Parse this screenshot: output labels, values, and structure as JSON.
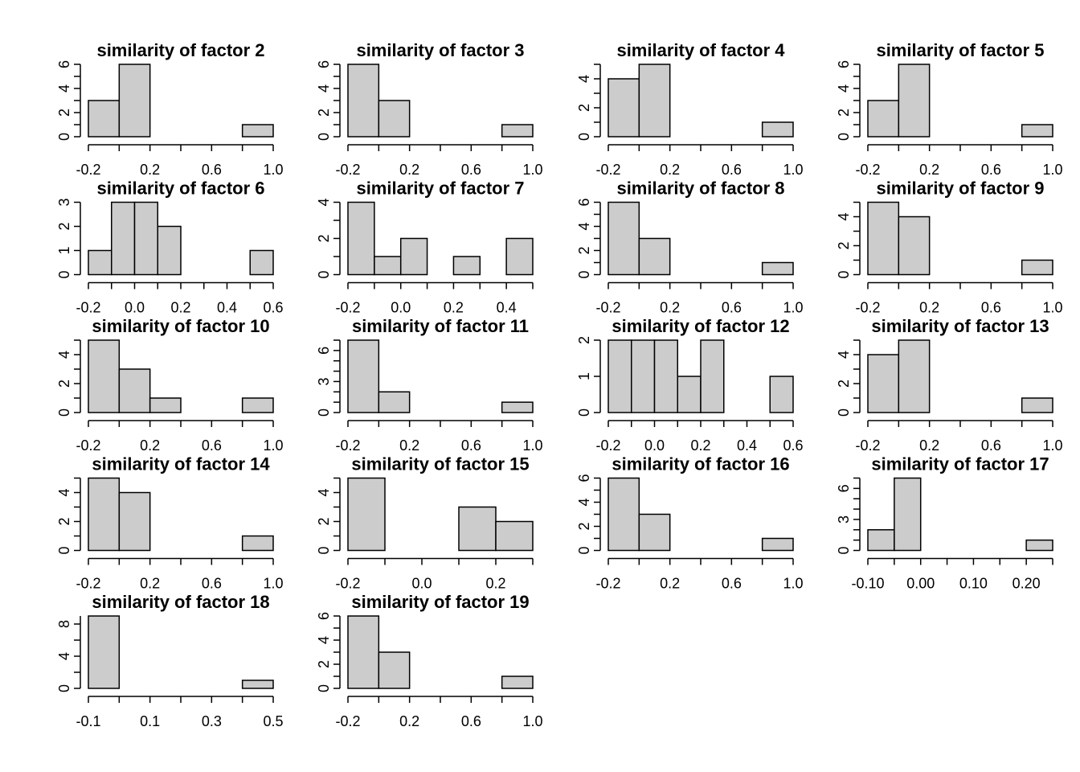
{
  "chart_data": [
    {
      "type": "histogram",
      "title": "similarity of factor 2",
      "bins": [
        -0.2,
        0,
        0.2,
        0.4,
        0.6,
        0.8,
        1
      ],
      "counts": [
        3,
        6,
        0,
        0,
        0,
        1
      ],
      "color": "#cccccc",
      "xlim": [
        -0.2,
        1
      ],
      "xticks": [
        -0.2,
        0.2,
        0.6,
        {
          "value": 1,
          "label": "1.0"
        }
      ],
      "ylim": [
        0,
        6
      ],
      "yticks": [
        0,
        2,
        4,
        6
      ],
      "yminor": [
        1,
        3,
        5
      ]
    },
    {
      "type": "histogram",
      "title": "similarity of factor 3",
      "bins": [
        -0.2,
        0,
        0.2,
        0.4,
        0.6,
        0.8,
        1
      ],
      "counts": [
        6,
        3,
        0,
        0,
        0,
        1
      ],
      "color": "#cccccc",
      "xlim": [
        -0.2,
        1
      ],
      "xticks": [
        -0.2,
        0.2,
        0.6,
        {
          "value": 1,
          "label": "1.0"
        }
      ],
      "ylim": [
        0,
        6
      ],
      "yticks": [
        0,
        2,
        4,
        6
      ],
      "yminor": [
        1,
        3,
        5
      ]
    },
    {
      "type": "histogram",
      "title": "similarity of factor 4",
      "bins": [
        -0.2,
        0,
        0.2,
        0.4,
        0.6,
        0.8,
        1
      ],
      "counts": [
        4,
        5,
        0,
        0,
        0,
        1
      ],
      "color": "#cccccc",
      "xlim": [
        -0.2,
        1
      ],
      "xticks": [
        -0.2,
        0.2,
        0.6,
        {
          "value": 1,
          "label": "1.0"
        }
      ],
      "ylim": [
        0,
        5
      ],
      "yticks": [
        0,
        2,
        4
      ],
      "yminor": [
        1,
        3,
        5
      ]
    },
    {
      "type": "histogram",
      "title": "similarity of factor 5",
      "bins": [
        -0.2,
        0,
        0.2,
        0.4,
        0.6,
        0.8,
        1
      ],
      "counts": [
        3,
        6,
        0,
        0,
        0,
        1
      ],
      "color": "#cccccc",
      "xlim": [
        -0.2,
        1
      ],
      "xticks": [
        -0.2,
        0.2,
        0.6,
        {
          "value": 1,
          "label": "1.0"
        }
      ],
      "ylim": [
        0,
        6
      ],
      "yticks": [
        0,
        2,
        4,
        6
      ],
      "yminor": [
        1,
        3,
        5
      ]
    },
    {
      "type": "histogram",
      "title": "similarity of factor 6",
      "bins": [
        -0.2,
        -0.1,
        0,
        0.1,
        0.2,
        0.3,
        0.4,
        0.5,
        0.6
      ],
      "counts": [
        1,
        3,
        3,
        2,
        0,
        0,
        0,
        1
      ],
      "color": "#cccccc",
      "xlim": [
        -0.2,
        0.6
      ],
      "xticks": [
        -0.2,
        {
          "value": 0,
          "label": "0.0"
        },
        0.2,
        0.4,
        0.6
      ],
      "ylim": [
        0,
        3
      ],
      "yticks": [
        0,
        1,
        2,
        3
      ],
      "yminor": []
    },
    {
      "type": "histogram",
      "title": "similarity of factor 7",
      "bins": [
        -0.2,
        -0.1,
        0,
        0.1,
        0.2,
        0.3,
        0.4,
        0.5
      ],
      "counts": [
        4,
        1,
        2,
        0,
        1,
        0,
        2
      ],
      "color": "#cccccc",
      "xlim": [
        -0.2,
        0.5
      ],
      "xticks": [
        -0.2,
        {
          "value": 0,
          "label": "0.0"
        },
        0.2,
        0.4
      ],
      "ylim": [
        0,
        4
      ],
      "yticks": [
        0,
        2,
        4
      ],
      "yminor": [
        1,
        3
      ]
    },
    {
      "type": "histogram",
      "title": "similarity of factor 8",
      "bins": [
        -0.2,
        0,
        0.2,
        0.4,
        0.6,
        0.8,
        1
      ],
      "counts": [
        6,
        3,
        0,
        0,
        0,
        1
      ],
      "color": "#cccccc",
      "xlim": [
        -0.2,
        1
      ],
      "xticks": [
        -0.2,
        0.2,
        0.6,
        {
          "value": 1,
          "label": "1.0"
        }
      ],
      "ylim": [
        0,
        6
      ],
      "yticks": [
        0,
        2,
        4,
        6
      ],
      "yminor": [
        1,
        3,
        5
      ]
    },
    {
      "type": "histogram",
      "title": "similarity of factor 9",
      "bins": [
        -0.2,
        0,
        0.2,
        0.4,
        0.6,
        0.8,
        1
      ],
      "counts": [
        5,
        4,
        0,
        0,
        0,
        1
      ],
      "color": "#cccccc",
      "xlim": [
        -0.2,
        1
      ],
      "xticks": [
        -0.2,
        0.2,
        0.6,
        {
          "value": 1,
          "label": "1.0"
        }
      ],
      "ylim": [
        0,
        5
      ],
      "yticks": [
        0,
        2,
        4
      ],
      "yminor": [
        1,
        3,
        5
      ]
    },
    {
      "type": "histogram",
      "title": "similarity of factor 10",
      "bins": [
        -0.2,
        0,
        0.2,
        0.4,
        0.6,
        0.8,
        1
      ],
      "counts": [
        5,
        3,
        1,
        0,
        0,
        1
      ],
      "color": "#cccccc",
      "xlim": [
        -0.2,
        1
      ],
      "xticks": [
        -0.2,
        0.2,
        0.6,
        {
          "value": 1,
          "label": "1.0"
        }
      ],
      "ylim": [
        0,
        5
      ],
      "yticks": [
        0,
        2,
        4
      ],
      "yminor": [
        1,
        3,
        5
      ]
    },
    {
      "type": "histogram",
      "title": "similarity of factor 11",
      "bins": [
        -0.2,
        0,
        0.2,
        0.4,
        0.6,
        0.8,
        1
      ],
      "counts": [
        7,
        2,
        0,
        0,
        0,
        1
      ],
      "color": "#cccccc",
      "xlim": [
        -0.2,
        1
      ],
      "xticks": [
        -0.2,
        0.2,
        0.6,
        {
          "value": 1,
          "label": "1.0"
        }
      ],
      "ylim": [
        0,
        7
      ],
      "yticks": [
        0,
        3,
        6
      ],
      "yminor": [
        1,
        2,
        4,
        5,
        7
      ]
    },
    {
      "type": "histogram",
      "title": "similarity of factor 12",
      "bins": [
        -0.2,
        -0.1,
        0,
        0.1,
        0.2,
        0.3,
        0.4,
        0.5,
        0.6
      ],
      "counts": [
        2,
        2,
        2,
        1,
        2,
        0,
        0,
        1
      ],
      "color": "#cccccc",
      "xlim": [
        -0.2,
        0.6
      ],
      "xticks": [
        -0.2,
        {
          "value": 0,
          "label": "0.0"
        },
        0.2,
        0.4,
        0.6
      ],
      "ylim": [
        0,
        2
      ],
      "yticks": [
        0,
        1,
        2
      ],
      "yminor": []
    },
    {
      "type": "histogram",
      "title": "similarity of factor 13",
      "bins": [
        -0.2,
        0,
        0.2,
        0.4,
        0.6,
        0.8,
        1
      ],
      "counts": [
        4,
        5,
        0,
        0,
        0,
        1
      ],
      "color": "#cccccc",
      "xlim": [
        -0.2,
        1
      ],
      "xticks": [
        -0.2,
        0.2,
        0.6,
        {
          "value": 1,
          "label": "1.0"
        }
      ],
      "ylim": [
        0,
        5
      ],
      "yticks": [
        0,
        2,
        4
      ],
      "yminor": [
        1,
        3,
        5
      ]
    },
    {
      "type": "histogram",
      "title": "similarity of factor 14",
      "bins": [
        -0.2,
        0,
        0.2,
        0.4,
        0.6,
        0.8,
        1
      ],
      "counts": [
        5,
        4,
        0,
        0,
        0,
        1
      ],
      "color": "#cccccc",
      "xlim": [
        -0.2,
        1
      ],
      "xticks": [
        -0.2,
        0.2,
        0.6,
        {
          "value": 1,
          "label": "1.0"
        }
      ],
      "ylim": [
        0,
        5
      ],
      "yticks": [
        0,
        2,
        4
      ],
      "yminor": [
        1,
        3,
        5
      ]
    },
    {
      "type": "histogram",
      "title": "similarity of factor 15",
      "bins": [
        -0.2,
        -0.1,
        0,
        0.1,
        0.2,
        0.3
      ],
      "counts": [
        5,
        0,
        0,
        3,
        2
      ],
      "color": "#cccccc",
      "xlim": [
        -0.2,
        0.3
      ],
      "xticks": [
        -0.2,
        {
          "value": 0,
          "label": "0.0"
        },
        0.2
      ],
      "ylim": [
        0,
        5
      ],
      "yticks": [
        0,
        2,
        4
      ],
      "yminor": [
        1,
        3,
        5
      ]
    },
    {
      "type": "histogram",
      "title": "similarity of factor 16",
      "bins": [
        -0.2,
        0,
        0.2,
        0.4,
        0.6,
        0.8,
        1
      ],
      "counts": [
        6,
        3,
        0,
        0,
        0,
        1
      ],
      "color": "#cccccc",
      "xlim": [
        -0.2,
        1
      ],
      "xticks": [
        -0.2,
        0.2,
        0.6,
        {
          "value": 1,
          "label": "1.0"
        }
      ],
      "ylim": [
        0,
        6
      ],
      "yticks": [
        0,
        2,
        4,
        6
      ],
      "yminor": [
        1,
        3,
        5
      ]
    },
    {
      "type": "histogram",
      "title": "similarity of factor 17",
      "bins": [
        -0.1,
        -0.05,
        0,
        0.05,
        0.1,
        0.15,
        0.2,
        0.25
      ],
      "counts": [
        2,
        7,
        0,
        0,
        0,
        0,
        1
      ],
      "color": "#cccccc",
      "xlim": [
        -0.1,
        0.25
      ],
      "xticks": [
        {
          "value": -0.1,
          "label": "-0.10"
        },
        {
          "value": 0,
          "label": "0.00"
        },
        {
          "value": 0.1,
          "label": "0.10"
        },
        {
          "value": 0.2,
          "label": "0.20"
        }
      ],
      "ylim": [
        0,
        7
      ],
      "yticks": [
        0,
        3,
        6
      ],
      "yminor": [
        1,
        2,
        4,
        5,
        7
      ]
    },
    {
      "type": "histogram",
      "title": "similarity of factor 18",
      "bins": [
        -0.1,
        0,
        0.1,
        0.2,
        0.3,
        0.4,
        0.5
      ],
      "counts": [
        9,
        0,
        0,
        0,
        0,
        1
      ],
      "color": "#cccccc",
      "xlim": [
        -0.1,
        0.5
      ],
      "xticks": [
        -0.1,
        0.1,
        0.3,
        0.5
      ],
      "ylim": [
        0,
        9
      ],
      "yticks": [
        0,
        4,
        8
      ],
      "yminor": [
        2,
        6
      ]
    },
    {
      "type": "histogram",
      "title": "similarity of factor 19",
      "bins": [
        -0.2,
        0,
        0.2,
        0.4,
        0.6,
        0.8,
        1
      ],
      "counts": [
        6,
        3,
        0,
        0,
        0,
        1
      ],
      "color": "#cccccc",
      "xlim": [
        -0.2,
        1
      ],
      "xticks": [
        -0.2,
        0.2,
        0.6,
        {
          "value": 1,
          "label": "1.0"
        }
      ],
      "ylim": [
        0,
        6
      ],
      "yticks": [
        0,
        2,
        4,
        6
      ],
      "yminor": [
        1,
        3,
        5
      ]
    }
  ]
}
